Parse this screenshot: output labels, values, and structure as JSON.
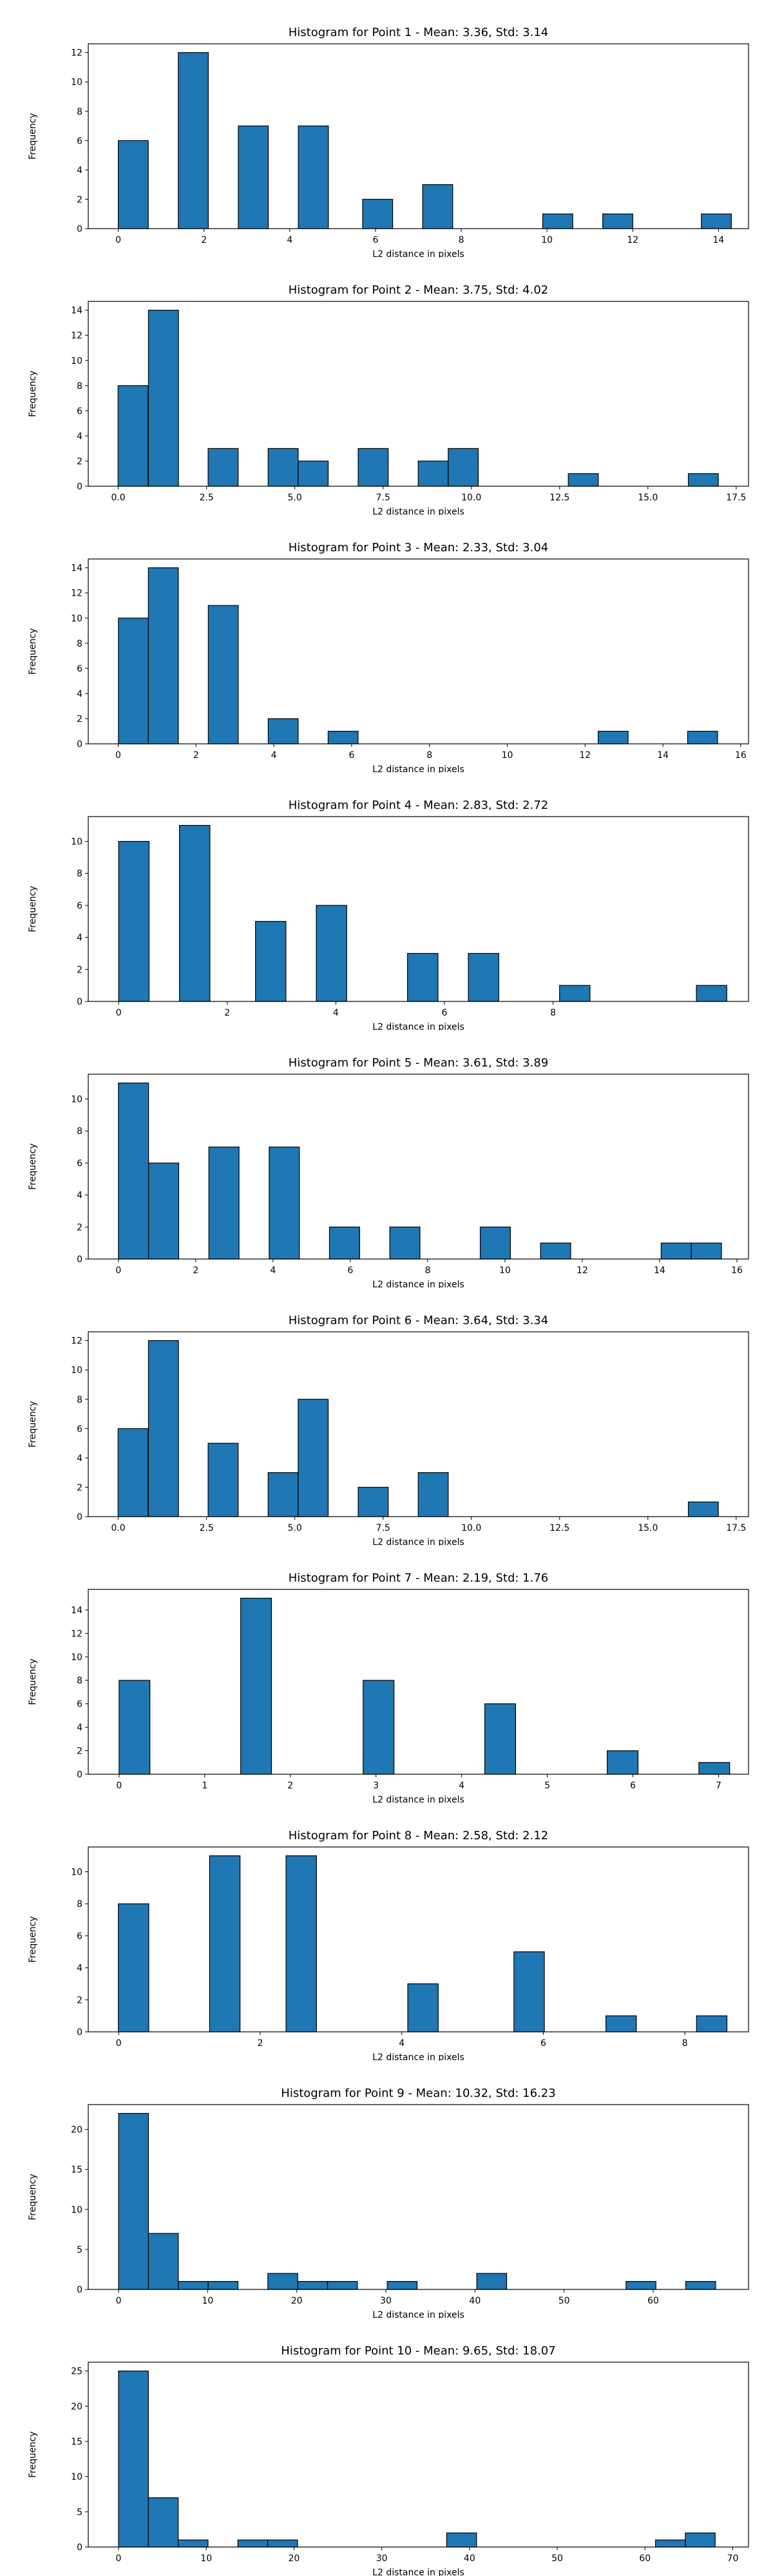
{
  "colors": {
    "bar": "#1f77b4",
    "bar_edge": "#000000",
    "axis": "#000000"
  },
  "chart_data": [
    {
      "type": "bar",
      "title": "Histogram for Point 1 - Mean: 3.36, Std: 3.14",
      "xlabel": "L2 distance in pixels",
      "ylabel": "Frequency",
      "xlim": [
        -0.7,
        14.7
      ],
      "ylim": [
        0,
        12.6
      ],
      "xticks": [
        0,
        2,
        4,
        6,
        8,
        10,
        12,
        14
      ],
      "xtick_labels": [
        "0",
        "2",
        "4",
        "6",
        "8",
        "10",
        "12",
        "14"
      ],
      "yticks": [
        0,
        2,
        4,
        6,
        8,
        10,
        12
      ],
      "bin_width": 0.7,
      "bars": [
        {
          "x": 0.35,
          "y": 6
        },
        {
          "x": 1.75,
          "y": 12
        },
        {
          "x": 3.15,
          "y": 7
        },
        {
          "x": 4.55,
          "y": 7
        },
        {
          "x": 6.05,
          "y": 2
        },
        {
          "x": 7.45,
          "y": 3
        },
        {
          "x": 10.25,
          "y": 1
        },
        {
          "x": 11.65,
          "y": 1
        },
        {
          "x": 13.95,
          "y": 1
        }
      ]
    },
    {
      "type": "bar",
      "title": "Histogram for Point 2 - Mean: 3.75, Std: 4.02",
      "xlabel": "L2 distance in pixels",
      "ylabel": "Frequency",
      "xlim": [
        -0.85,
        17.85
      ],
      "ylim": [
        0,
        14.7
      ],
      "xticks": [
        0,
        2.5,
        5,
        7.5,
        10,
        12.5,
        15,
        17.5
      ],
      "xtick_labels": [
        "0.0",
        "2.5",
        "5.0",
        "7.5",
        "10.0",
        "12.5",
        "15.0",
        "17.5"
      ],
      "yticks": [
        0,
        2,
        4,
        6,
        8,
        10,
        12,
        14
      ],
      "bin_width": 0.85,
      "bars": [
        {
          "x": 0.42,
          "y": 8
        },
        {
          "x": 1.28,
          "y": 14
        },
        {
          "x": 2.97,
          "y": 3
        },
        {
          "x": 4.67,
          "y": 3
        },
        {
          "x": 5.52,
          "y": 2
        },
        {
          "x": 7.22,
          "y": 3
        },
        {
          "x": 8.92,
          "y": 2
        },
        {
          "x": 9.77,
          "y": 3
        },
        {
          "x": 13.17,
          "y": 1
        },
        {
          "x": 16.57,
          "y": 1
        }
      ]
    },
    {
      "type": "bar",
      "title": "Histogram for Point 3 - Mean: 2.33, Std: 3.04",
      "xlabel": "L2 distance in pixels",
      "ylabel": "Frequency",
      "xlim": [
        -0.77,
        16.2
      ],
      "ylim": [
        0,
        14.7
      ],
      "xticks": [
        0,
        2,
        4,
        6,
        8,
        10,
        12,
        14,
        16
      ],
      "xtick_labels": [
        "0",
        "2",
        "4",
        "6",
        "8",
        "10",
        "12",
        "14",
        "16"
      ],
      "yticks": [
        0,
        2,
        4,
        6,
        8,
        10,
        12,
        14
      ],
      "bin_width": 0.77,
      "bars": [
        {
          "x": 0.39,
          "y": 10
        },
        {
          "x": 1.16,
          "y": 14
        },
        {
          "x": 2.7,
          "y": 11
        },
        {
          "x": 4.24,
          "y": 2
        },
        {
          "x": 5.78,
          "y": 1
        },
        {
          "x": 12.72,
          "y": 1
        },
        {
          "x": 15.02,
          "y": 1
        }
      ]
    },
    {
      "type": "bar",
      "title": "Histogram for Point 4 - Mean: 2.83, Std: 2.72",
      "xlabel": "L2 distance in pixels",
      "ylabel": "Frequency",
      "xlim": [
        -0.56,
        11.6
      ],
      "ylim": [
        0,
        11.55
      ],
      "xticks": [
        0,
        2,
        4,
        6,
        8
      ],
      "xtick_labels": [
        "0",
        "2",
        "4",
        "6",
        "8"
      ],
      "yticks": [
        0,
        2,
        4,
        6,
        8,
        10
      ],
      "bin_width": 0.56,
      "bars": [
        {
          "x": 0.28,
          "y": 10
        },
        {
          "x": 1.4,
          "y": 11
        },
        {
          "x": 2.8,
          "y": 5
        },
        {
          "x": 3.92,
          "y": 6
        },
        {
          "x": 5.6,
          "y": 3
        },
        {
          "x": 6.72,
          "y": 3
        },
        {
          "x": 8.4,
          "y": 1
        },
        {
          "x": 10.92,
          "y": 1
        }
      ]
    },
    {
      "type": "bar",
      "title": "Histogram for Point 5 - Mean: 3.61, Std: 3.89",
      "xlabel": "L2 distance in pixels",
      "ylabel": "Frequency",
      "xlim": [
        -0.78,
        16.3
      ],
      "ylim": [
        0,
        11.55
      ],
      "xticks": [
        0,
        2,
        4,
        6,
        8,
        10,
        12,
        14,
        16
      ],
      "xtick_labels": [
        "0",
        "2",
        "4",
        "6",
        "8",
        "10",
        "12",
        "14",
        "16"
      ],
      "yticks": [
        0,
        2,
        4,
        6,
        8,
        10
      ],
      "bin_width": 0.78,
      "bars": [
        {
          "x": 0.39,
          "y": 11
        },
        {
          "x": 1.17,
          "y": 6
        },
        {
          "x": 2.73,
          "y": 7
        },
        {
          "x": 4.29,
          "y": 7
        },
        {
          "x": 5.85,
          "y": 2
        },
        {
          "x": 7.41,
          "y": 2
        },
        {
          "x": 9.75,
          "y": 2
        },
        {
          "x": 11.31,
          "y": 1
        },
        {
          "x": 14.43,
          "y": 1
        },
        {
          "x": 15.21,
          "y": 1
        }
      ]
    },
    {
      "type": "bar",
      "title": "Histogram for Point 6 - Mean: 3.64, Std: 3.34",
      "xlabel": "L2 distance in pixels",
      "ylabel": "Frequency",
      "xlim": [
        -0.85,
        17.85
      ],
      "ylim": [
        0,
        12.6
      ],
      "xticks": [
        0,
        2.5,
        5,
        7.5,
        10,
        12.5,
        15,
        17.5
      ],
      "xtick_labels": [
        "0.0",
        "2.5",
        "5.0",
        "7.5",
        "10.0",
        "12.5",
        "15.0",
        "17.5"
      ],
      "yticks": [
        0,
        2,
        4,
        6,
        8,
        10,
        12
      ],
      "bin_width": 0.85,
      "bars": [
        {
          "x": 0.42,
          "y": 6
        },
        {
          "x": 1.28,
          "y": 12
        },
        {
          "x": 2.97,
          "y": 5
        },
        {
          "x": 4.67,
          "y": 3
        },
        {
          "x": 5.52,
          "y": 8
        },
        {
          "x": 7.22,
          "y": 2
        },
        {
          "x": 8.92,
          "y": 3
        },
        {
          "x": 16.57,
          "y": 1
        }
      ]
    },
    {
      "type": "bar",
      "title": "Histogram for Point 7 - Mean: 2.19, Std: 1.76",
      "xlabel": "L2 distance in pixels",
      "ylabel": "Frequency",
      "xlim": [
        -0.36,
        7.35
      ],
      "ylim": [
        0,
        15.75
      ],
      "xticks": [
        0,
        1,
        2,
        3,
        4,
        5,
        6,
        7
      ],
      "xtick_labels": [
        "0",
        "1",
        "2",
        "3",
        "4",
        "5",
        "6",
        "7"
      ],
      "yticks": [
        0,
        2,
        4,
        6,
        8,
        10,
        12,
        14
      ],
      "bin_width": 0.36,
      "bars": [
        {
          "x": 0.18,
          "y": 8
        },
        {
          "x": 1.6,
          "y": 15
        },
        {
          "x": 3.03,
          "y": 8
        },
        {
          "x": 4.45,
          "y": 6
        },
        {
          "x": 5.88,
          "y": 2
        },
        {
          "x": 6.95,
          "y": 1
        }
      ]
    },
    {
      "type": "bar",
      "title": "Histogram for Point 8 - Mean: 2.58, Std: 2.12",
      "xlabel": "L2 distance in pixels",
      "ylabel": "Frequency",
      "xlim": [
        -0.43,
        8.9
      ],
      "ylim": [
        0,
        11.55
      ],
      "xticks": [
        0,
        2,
        4,
        6,
        8
      ],
      "xtick_labels": [
        "0",
        "2",
        "4",
        "6",
        "8"
      ],
      "yticks": [
        0,
        2,
        4,
        6,
        8,
        10
      ],
      "bin_width": 0.43,
      "bars": [
        {
          "x": 0.21,
          "y": 8
        },
        {
          "x": 1.5,
          "y": 11
        },
        {
          "x": 2.58,
          "y": 11
        },
        {
          "x": 4.3,
          "y": 3
        },
        {
          "x": 5.8,
          "y": 5
        },
        {
          "x": 7.1,
          "y": 1
        },
        {
          "x": 8.38,
          "y": 1
        }
      ]
    },
    {
      "type": "bar",
      "title": "Histogram for Point 9 - Mean: 10.32, Std: 16.23",
      "xlabel": "L2 distance in pixels",
      "ylabel": "Frequency",
      "xlim": [
        -3.4,
        70.7
      ],
      "ylim": [
        0,
        23.1
      ],
      "xticks": [
        0,
        10,
        20,
        30,
        40,
        50,
        60
      ],
      "xtick_labels": [
        "0",
        "10",
        "20",
        "30",
        "40",
        "50",
        "60"
      ],
      "yticks": [
        0,
        5,
        10,
        15,
        20
      ],
      "bin_width": 3.35,
      "bars": [
        {
          "x": 1.68,
          "y": 22
        },
        {
          "x": 5.03,
          "y": 7
        },
        {
          "x": 8.38,
          "y": 1
        },
        {
          "x": 11.73,
          "y": 1
        },
        {
          "x": 18.43,
          "y": 2
        },
        {
          "x": 21.78,
          "y": 1
        },
        {
          "x": 25.13,
          "y": 1
        },
        {
          "x": 31.83,
          "y": 1
        },
        {
          "x": 41.88,
          "y": 2
        },
        {
          "x": 58.63,
          "y": 1
        },
        {
          "x": 65.33,
          "y": 1
        }
      ]
    },
    {
      "type": "bar",
      "title": "Histogram for Point 10 - Mean: 9.65, Std: 18.07",
      "xlabel": "L2 distance in pixels",
      "ylabel": "Frequency",
      "xlim": [
        -3.45,
        71.8
      ],
      "ylim": [
        0,
        26.25
      ],
      "xticks": [
        0,
        10,
        20,
        30,
        40,
        50,
        60,
        70
      ],
      "xtick_labels": [
        "0",
        "10",
        "20",
        "30",
        "40",
        "50",
        "60",
        "70"
      ],
      "yticks": [
        0,
        5,
        10,
        15,
        20,
        25
      ],
      "bin_width": 3.4,
      "bars": [
        {
          "x": 1.7,
          "y": 25
        },
        {
          "x": 5.1,
          "y": 7
        },
        {
          "x": 8.5,
          "y": 1
        },
        {
          "x": 15.3,
          "y": 1
        },
        {
          "x": 18.7,
          "y": 1
        },
        {
          "x": 39.1,
          "y": 2
        },
        {
          "x": 62.9,
          "y": 1
        },
        {
          "x": 66.3,
          "y": 2
        }
      ]
    }
  ]
}
